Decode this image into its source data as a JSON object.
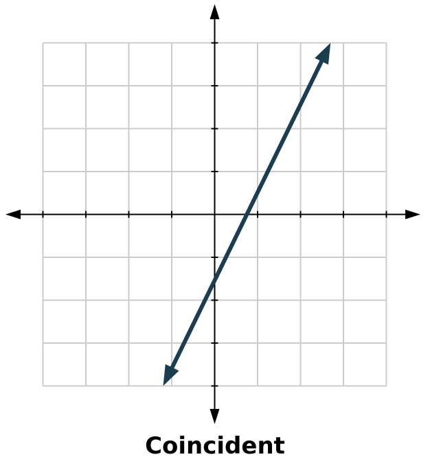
{
  "chart_data": {
    "type": "line",
    "title": "",
    "xlabel": "",
    "ylabel": "",
    "xlim": [
      -4,
      4
    ],
    "ylim": [
      -4,
      4
    ],
    "grid": true,
    "x_ticks": [
      -4,
      -3,
      -2,
      -1,
      1,
      2,
      3,
      4
    ],
    "y_ticks": [
      -4,
      -3,
      -2,
      -1,
      1,
      2,
      3,
      4
    ],
    "series": [
      {
        "x": [
          -1.2,
          2.7
        ],
        "y": [
          -4,
          4
        ],
        "arrows": "both"
      }
    ],
    "caption": "Coincident"
  },
  "colors": {
    "line": "#1b3d4f",
    "grid": "#cccccc",
    "axes": "#000000"
  }
}
